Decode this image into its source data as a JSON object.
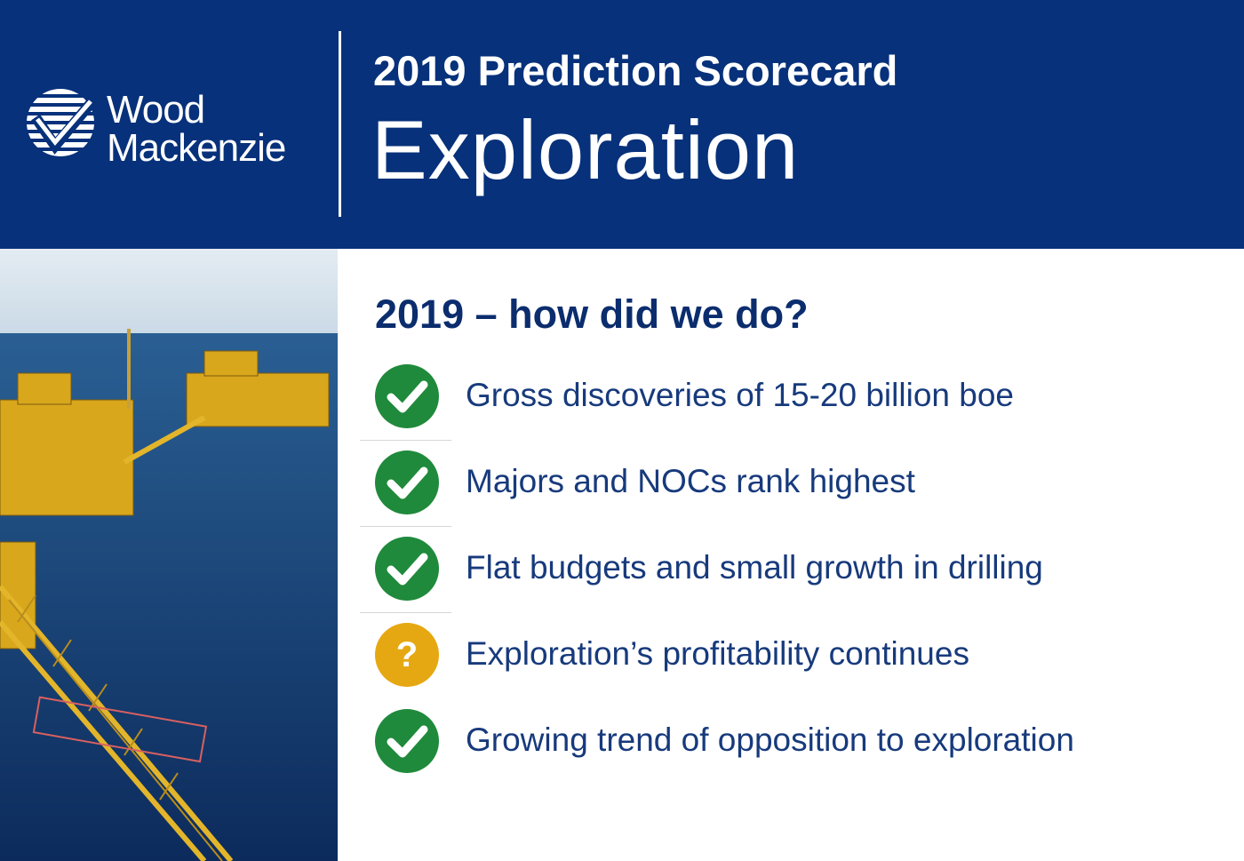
{
  "header": {
    "logo": [
      "Wood",
      "Mackenzie"
    ],
    "subtitle": "2019 Prediction Scorecard",
    "title": "Exploration"
  },
  "section": {
    "heading": "2019 – how did we do?",
    "items": [
      {
        "text": "Gross discoveries of 15-20 billion boe"
      },
      {
        "text": "Majors and NOCs rank highest"
      },
      {
        "text": "Flat budgets and small growth in drilling"
      },
      {
        "text": "Exploration’s profitability continues",
        "symbol": "?"
      },
      {
        "text": "Growing trend of opposition to exploration"
      }
    ]
  }
}
